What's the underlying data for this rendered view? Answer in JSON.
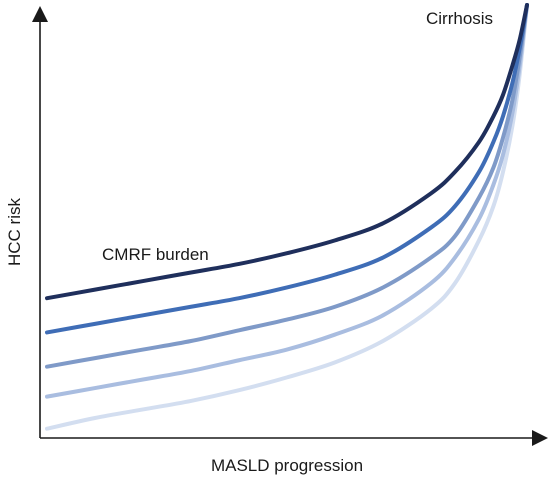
{
  "chart_data": {
    "type": "line",
    "title": "",
    "xlabel": "MASLD progression",
    "ylabel": "HCC risk",
    "grid": false,
    "annotations": [
      {
        "text": "CMRF burden"
      },
      {
        "text": "Cirrhosis"
      }
    ],
    "xlim": [
      0,
      1
    ],
    "ylim": [
      0,
      1
    ],
    "series": [
      {
        "color": "#1f2f5c",
        "x": [
          0,
          0.1,
          0.2,
          0.3,
          0.4,
          0.5,
          0.6,
          0.7,
          0.8,
          0.85,
          0.9,
          0.93,
          0.95,
          0.97,
          0.985,
          1.0
        ],
        "y": [
          0.315,
          0.335,
          0.355,
          0.375,
          0.395,
          0.42,
          0.45,
          0.49,
          0.56,
          0.61,
          0.68,
          0.74,
          0.79,
          0.86,
          0.92,
          1.0
        ]
      },
      {
        "color": "#3f6db6",
        "x": [
          0,
          0.1,
          0.2,
          0.3,
          0.4,
          0.5,
          0.6,
          0.7,
          0.8,
          0.85,
          0.9,
          0.93,
          0.95,
          0.97,
          0.985,
          1.0
        ],
        "y": [
          0.235,
          0.255,
          0.275,
          0.295,
          0.315,
          0.34,
          0.37,
          0.41,
          0.48,
          0.53,
          0.61,
          0.68,
          0.74,
          0.82,
          0.9,
          1.0
        ]
      },
      {
        "color": "#7f9ac8",
        "x": [
          0,
          0.1,
          0.2,
          0.3,
          0.4,
          0.5,
          0.6,
          0.7,
          0.8,
          0.85,
          0.9,
          0.93,
          0.95,
          0.97,
          0.985,
          1.0
        ],
        "y": [
          0.155,
          0.175,
          0.195,
          0.215,
          0.24,
          0.265,
          0.295,
          0.34,
          0.41,
          0.46,
          0.55,
          0.62,
          0.69,
          0.78,
          0.88,
          1.0
        ]
      },
      {
        "color": "#a9bde0",
        "x": [
          0,
          0.1,
          0.2,
          0.3,
          0.4,
          0.5,
          0.6,
          0.7,
          0.8,
          0.85,
          0.9,
          0.93,
          0.95,
          0.97,
          0.985,
          1.0
        ],
        "y": [
          0.085,
          0.105,
          0.125,
          0.145,
          0.17,
          0.195,
          0.23,
          0.275,
          0.35,
          0.41,
          0.5,
          0.58,
          0.65,
          0.75,
          0.86,
          1.0
        ]
      },
      {
        "color": "#d3def0",
        "x": [
          0,
          0.1,
          0.2,
          0.3,
          0.4,
          0.5,
          0.6,
          0.7,
          0.8,
          0.85,
          0.9,
          0.93,
          0.95,
          0.97,
          0.985,
          1.0
        ],
        "y": [
          0.01,
          0.035,
          0.055,
          0.075,
          0.1,
          0.13,
          0.165,
          0.215,
          0.29,
          0.35,
          0.45,
          0.53,
          0.61,
          0.72,
          0.84,
          1.0
        ]
      }
    ]
  }
}
